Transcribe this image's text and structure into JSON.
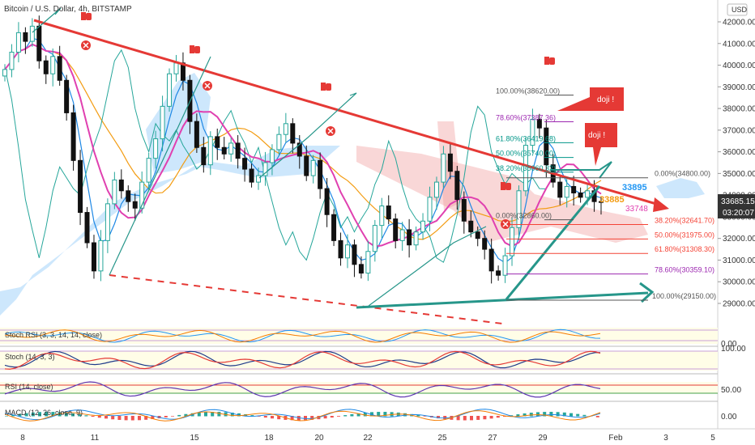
{
  "header": {
    "symbol_title": "Bitcoin / U.S. Dollar, 4h, BITSTAMP",
    "currency": "USD"
  },
  "price_axis": {
    "ticks": [
      "42000.00",
      "41000.00",
      "40000.00",
      "39000.00",
      "38000.00",
      "37000.00",
      "36000.00",
      "35000.00",
      "34000.00",
      "33000.00",
      "32000.00",
      "31000.00",
      "30000.00",
      "29000.00"
    ],
    "current_price": "33685.15",
    "countdown": "03:20:07"
  },
  "time_axis": {
    "ticks": [
      "8",
      "11",
      "15",
      "18",
      "20",
      "22",
      "25",
      "27",
      "29",
      "Feb",
      "3",
      "5"
    ]
  },
  "fib_left": [
    {
      "label": "100.00%(38620.00)",
      "color": "#555555",
      "price": 38620
    },
    {
      "label": "78.60%(37387.36)",
      "color": "#9c27b0",
      "price": 37387.36
    },
    {
      "label": "61.80%(36419.68)",
      "color": "#009688",
      "price": 36419.68
    },
    {
      "label": "50.00%(35740.00)",
      "color": "#009688",
      "price": 35740
    },
    {
      "label": "38.20%(35060.32)",
      "color": "#009688",
      "price": 35060.32
    },
    {
      "label": "0.00%(32860.00)",
      "color": "#555555",
      "price": 32860
    }
  ],
  "fib_right": [
    {
      "label": "0.00%(34800.00)",
      "color": "#555555",
      "price": 34800
    },
    {
      "label": "38.20%(32641.70)",
      "color": "#f44336",
      "price": 32641.7
    },
    {
      "label": "50.00%(31975.00)",
      "color": "#f44336",
      "price": 31975
    },
    {
      "label": "61.80%(31308.30)",
      "color": "#f44336",
      "price": 31308.3
    },
    {
      "label": "78.60%(30359.10)",
      "color": "#9c27b0",
      "price": 30359.1
    },
    {
      "label": "100.00%(29150.00)",
      "color": "#555555",
      "price": 29150
    }
  ],
  "annotations": {
    "doji_1": "doji !",
    "doji_2": "doji !",
    "level_blue": "33895",
    "level_orange": "33885",
    "level_pink": "33748"
  },
  "indicators": {
    "stoch_rsi": {
      "title": "Stoch RSI (3, 3, 14, 14, close)",
      "ticks": [
        "0.00"
      ]
    },
    "stoch": {
      "title": "Stoch (14, 3, 3)",
      "ticks": [
        "100.00"
      ]
    },
    "rsi": {
      "title": "RSI (14, close)",
      "ticks": [
        "50.00"
      ]
    },
    "macd": {
      "title": "MACD (12, 26, close, 9)",
      "ticks": [
        "0.00"
      ]
    }
  },
  "colors": {
    "up": "#26a69a",
    "down": "#111111",
    "trend_red": "#e53935",
    "trend_green": "#26968a",
    "ma_pink": "#e040b0",
    "ma_orange": "#f39c12",
    "ma_blue": "#1e88e5",
    "cloud_blue": "#90caf9",
    "cloud_red": "#ef9a9a",
    "price_tag": "#333333"
  },
  "chart_data": {
    "type": "candlestick",
    "y_range": [
      28200,
      43000
    ],
    "closes": [
      39800,
      40600,
      41500,
      41100,
      41800,
      40200,
      39600,
      40400,
      39300,
      37800,
      35600,
      33200,
      31800,
      30500,
      31900,
      33600,
      34700,
      34200,
      33700,
      33400,
      34600,
      35700,
      36600,
      38100,
      39600,
      40100,
      39300,
      37400,
      36200,
      35400,
      36700,
      36200,
      35900,
      36400,
      35700,
      35200,
      34600,
      34900,
      35500,
      36100,
      36800,
      37300,
      36400,
      35800,
      34900,
      35600,
      34300,
      33100,
      31900,
      31100,
      31700,
      30800,
      30400,
      31400,
      32600,
      33500,
      32900,
      31900,
      32400,
      31700,
      32300,
      32800,
      33900,
      34600,
      35900,
      35100,
      33800,
      32800,
      32300,
      32000,
      31500,
      30500,
      30300,
      31200,
      32500,
      34200,
      36300,
      37500,
      37100,
      35400,
      34600,
      33900,
      34400,
      34100,
      33900,
      34200,
      33700,
      33685
    ]
  }
}
